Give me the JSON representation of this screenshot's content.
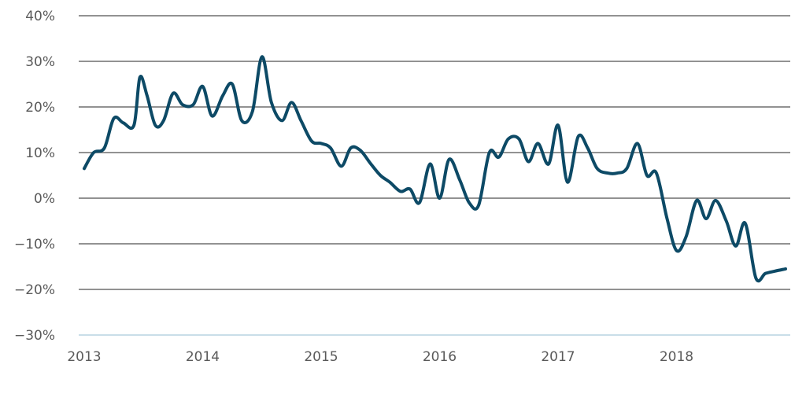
{
  "chart_data": {
    "type": "line",
    "ylim": [
      -30,
      40
    ],
    "yticks": [
      40,
      30,
      20,
      10,
      0,
      -10,
      -20,
      -30
    ],
    "ytick_labels": [
      "40%",
      "30%",
      "20%",
      "10%",
      "0%",
      "−10%",
      "−20%",
      "−30%"
    ],
    "xlim": [
      2013,
      2019
    ],
    "xticks": [
      2013,
      2014,
      2015,
      2016,
      2017,
      2018
    ],
    "xtick_labels": [
      "2013",
      "2014",
      "2015",
      "2016",
      "2017",
      "2018"
    ],
    "grid": true,
    "line_color": "#0d4a66",
    "series": [
      {
        "x": [
          2013.0,
          2013.08,
          2013.17,
          2013.25,
          2013.33,
          2013.42,
          2013.47,
          2013.53,
          2013.6,
          2013.67,
          2013.75,
          2013.83,
          2013.92,
          2014.0,
          2014.08,
          2014.17,
          2014.25,
          2014.33,
          2014.42,
          2014.5,
          2014.58,
          2014.67,
          2014.75,
          2014.83,
          2014.92,
          2015.0,
          2015.08,
          2015.17,
          2015.25,
          2015.33,
          2015.42,
          2015.5,
          2015.58,
          2015.67,
          2015.75,
          2015.83,
          2015.92,
          2016.0,
          2016.08,
          2016.17,
          2016.25,
          2016.33,
          2016.42,
          2016.5,
          2016.58,
          2016.67,
          2016.75,
          2016.83,
          2016.92,
          2017.0,
          2017.08,
          2017.17,
          2017.25,
          2017.33,
          2017.42,
          2017.5,
          2017.58,
          2017.67,
          2017.75,
          2017.83,
          2017.92,
          2018.0,
          2018.08,
          2018.17,
          2018.25,
          2018.33,
          2018.42,
          2018.5,
          2018.58,
          2018.67,
          2018.75,
          2018.83,
          2018.92
        ],
        "values": [
          6.5,
          10,
          11,
          17.5,
          16.5,
          16,
          26.5,
          22.5,
          16,
          17,
          23,
          20.5,
          20.5,
          24.5,
          18,
          22.5,
          25,
          17,
          19,
          31,
          21,
          17,
          21,
          17,
          12.5,
          12,
          11,
          7,
          11,
          10.5,
          7.5,
          5,
          3.5,
          1.5,
          2,
          -1,
          7.5,
          0,
          8.5,
          4,
          -1,
          -1.5,
          10,
          9,
          13,
          13,
          8,
          12,
          7.5,
          16,
          3.5,
          13.5,
          11,
          6.5,
          5.5,
          5.5,
          6.5,
          12,
          5,
          5.5,
          -4.5,
          -11.5,
          -8.5,
          -0.5,
          -4.5,
          -0.5,
          -5,
          -10.5,
          -5.5,
          -17.5,
          -16.5,
          -16,
          -15.5
        ]
      }
    ]
  }
}
